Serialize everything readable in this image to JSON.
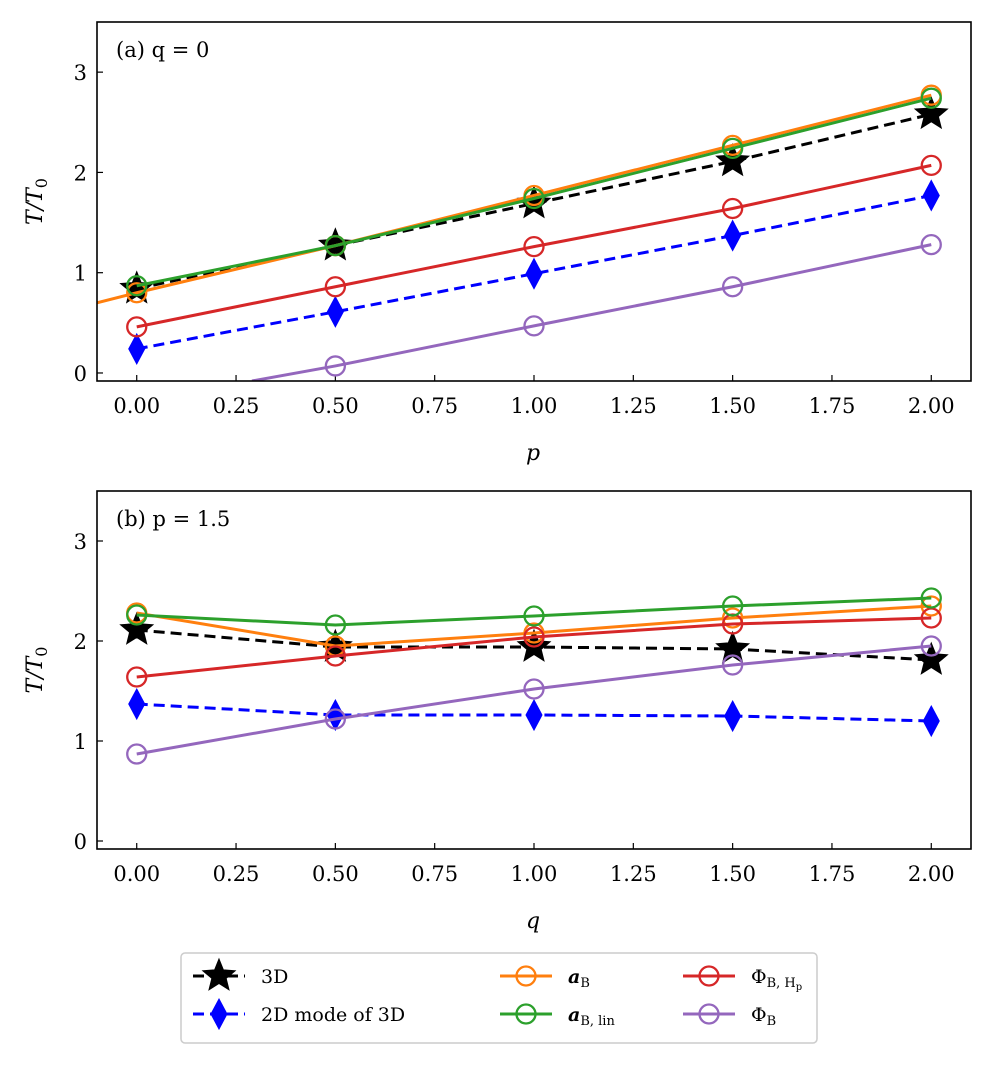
{
  "figure": {
    "legend": {
      "entries": [
        {
          "label": "3D",
          "series": "3D"
        },
        {
          "label": "2D mode of 3D",
          "series": "2D"
        },
        {
          "label_main": "a",
          "label_sub": "B",
          "series": "aB"
        },
        {
          "label_main": "a",
          "label_sub": "B, lin",
          "series": "aBlin"
        },
        {
          "label_main": "Φ",
          "label_sub": "B, H",
          "label_subsub": "p",
          "series": "PhiBHp"
        },
        {
          "label_main": "Φ",
          "label_sub": "B",
          "series": "PhiB"
        }
      ]
    }
  },
  "chart_data": [
    {
      "type": "line",
      "panel_label": "(a) q = 0",
      "xlabel": "p",
      "ylabel_main": "T/T",
      "ylabel_sub": "0",
      "xlim": [
        -0.1,
        2.1
      ],
      "ylim": [
        -0.08,
        3.5
      ],
      "xticks": [
        0,
        0.25,
        0.5,
        0.75,
        1.0,
        1.25,
        1.5,
        1.75,
        2.0
      ],
      "xtick_labels": [
        "0.00",
        "0.25",
        "0.50",
        "0.75",
        "1.00",
        "1.25",
        "1.50",
        "1.75",
        "2.00"
      ],
      "yticks": [
        0,
        1,
        2,
        3
      ],
      "ytick_labels": [
        "0",
        "1",
        "2",
        "3"
      ],
      "series": [
        {
          "id": "3D",
          "name": "3D",
          "x": [
            0,
            0.5,
            1.0,
            1.5,
            2.0
          ],
          "y": [
            0.84,
            1.27,
            1.69,
            2.11,
            2.58
          ],
          "color": "#000000",
          "dashed": true,
          "marker": "star"
        },
        {
          "id": "2D",
          "name": "2D mode of 3D",
          "x": [
            0,
            0.5,
            1.0,
            1.5,
            2.0
          ],
          "y": [
            0.24,
            0.61,
            0.99,
            1.37,
            1.77
          ],
          "color": "#0000ff",
          "dashed": true,
          "marker": "diamond"
        },
        {
          "id": "aB",
          "name": "aB",
          "x": [
            0,
            0.5,
            1.0,
            1.5,
            2.0
          ],
          "y": [
            0.8,
            1.27,
            1.77,
            2.27,
            2.77
          ],
          "color": "#ff7f0e",
          "dashed": false,
          "marker": "circle",
          "fit_x": [
            -0.1,
            2.0
          ],
          "fit_y": [
            0.7,
            2.77
          ]
        },
        {
          "id": "PhiBHp",
          "name": "ΦB,Hp",
          "x": [
            0,
            0.5,
            1.0,
            1.5,
            2.0
          ],
          "y": [
            0.46,
            0.86,
            1.26,
            1.64,
            2.07
          ],
          "color": "#d62728",
          "dashed": false,
          "marker": "circle"
        },
        {
          "id": "PhiB",
          "name": "ΦB",
          "x": [
            0.5,
            1.0,
            1.5,
            2.0
          ],
          "y": [
            0.07,
            0.47,
            0.86,
            1.28
          ],
          "color": "#9467bd",
          "dashed": false,
          "marker": "circle",
          "fit_x": [
            0.29,
            2.0
          ],
          "fit_y": [
            -0.08,
            1.28
          ]
        },
        {
          "id": "aBlin",
          "name": "aB,lin",
          "x": [
            0,
            0.5,
            1.0,
            1.5,
            2.0
          ],
          "y": [
            0.87,
            1.27,
            1.74,
            2.24,
            2.74
          ],
          "color": "#2ca02c",
          "dashed": false,
          "marker": "circle"
        }
      ]
    },
    {
      "type": "line",
      "panel_label": "(b) p = 1.5",
      "xlabel": "q",
      "ylabel_main": "T/T",
      "ylabel_sub": "0",
      "xlim": [
        -0.1,
        2.1
      ],
      "ylim": [
        -0.08,
        3.5
      ],
      "xticks": [
        0,
        0.25,
        0.5,
        0.75,
        1.0,
        1.25,
        1.5,
        1.75,
        2.0
      ],
      "xtick_labels": [
        "0.00",
        "0.25",
        "0.50",
        "0.75",
        "1.00",
        "1.25",
        "1.50",
        "1.75",
        "2.00"
      ],
      "yticks": [
        0,
        1,
        2,
        3
      ],
      "ytick_labels": [
        "0",
        "1",
        "2",
        "3"
      ],
      "series": [
        {
          "id": "3D",
          "name": "3D",
          "x": [
            0,
            0.5,
            1.0,
            1.5,
            2.0
          ],
          "y": [
            2.11,
            1.94,
            1.94,
            1.92,
            1.81
          ],
          "color": "#000000",
          "dashed": true,
          "marker": "star"
        },
        {
          "id": "2D",
          "name": "2D mode of 3D",
          "x": [
            0,
            0.5,
            1.0,
            1.5,
            2.0
          ],
          "y": [
            1.37,
            1.26,
            1.26,
            1.25,
            1.2
          ],
          "color": "#0000ff",
          "dashed": true,
          "marker": "diamond"
        },
        {
          "id": "aB",
          "name": "aB",
          "x": [
            0,
            0.5,
            1.0,
            1.5,
            2.0
          ],
          "y": [
            2.28,
            1.95,
            2.08,
            2.23,
            2.35
          ],
          "color": "#ff7f0e",
          "dashed": false,
          "marker": "circle"
        },
        {
          "id": "PhiBHp",
          "name": "ΦB,Hp",
          "x": [
            0,
            0.5,
            1.0,
            1.5,
            2.0
          ],
          "y": [
            1.64,
            1.85,
            2.04,
            2.17,
            2.23
          ],
          "color": "#d62728",
          "dashed": false,
          "marker": "circle"
        },
        {
          "id": "PhiB",
          "name": "ΦB",
          "x": [
            0,
            0.5,
            1.0,
            1.5,
            2.0
          ],
          "y": [
            0.87,
            1.22,
            1.52,
            1.76,
            1.95
          ],
          "color": "#9467bd",
          "dashed": false,
          "marker": "circle"
        },
        {
          "id": "aBlin",
          "name": "aB,lin",
          "x": [
            0,
            0.5,
            1.0,
            1.5,
            2.0
          ],
          "y": [
            2.26,
            2.16,
            2.25,
            2.35,
            2.43
          ],
          "color": "#2ca02c",
          "dashed": false,
          "marker": "circle"
        }
      ]
    }
  ]
}
